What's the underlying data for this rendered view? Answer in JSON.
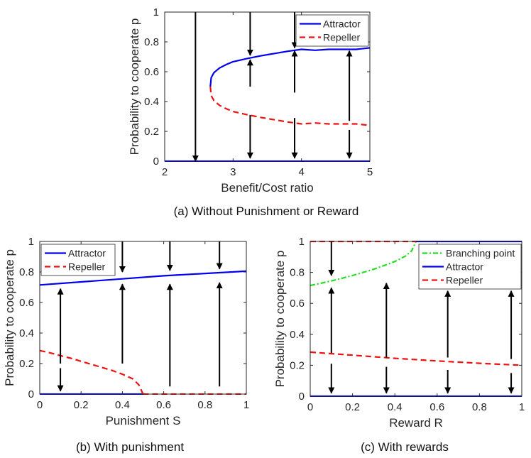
{
  "chart_data": [
    {
      "id": "a",
      "type": "line",
      "caption": "(a) Without Punishment or Reward",
      "xlabel": "Benefit/Cost ratio",
      "ylabel": "Probability to cooperate p",
      "xlim": [
        2,
        5
      ],
      "ylim": [
        0,
        1
      ],
      "xticks": [
        2,
        3,
        4,
        5
      ],
      "xtick_labels": [
        "2",
        "3",
        "4",
        "5"
      ],
      "yticks": [
        0,
        0.2,
        0.4,
        0.6,
        0.8,
        1
      ],
      "ytick_labels": [
        "0",
        "0.2",
        "0.4",
        "0.6",
        "0.8",
        "1"
      ],
      "legend": {
        "position": "top-right",
        "entries": [
          "Attractor",
          "Repeller"
        ]
      },
      "series": [
        {
          "name": "Attractor",
          "style": "solid",
          "color": "#0000ee",
          "x": [
            2.0,
            2.5,
            3.0,
            3.5,
            4.0,
            4.5,
            5.0
          ],
          "y": [
            0,
            0,
            0,
            0,
            0,
            0,
            0
          ]
        },
        {
          "name": "Attractor",
          "style": "solid",
          "color": "#0000ee",
          "x": [
            2.667,
            2.68,
            2.72,
            2.8,
            2.9,
            3.0,
            3.2,
            3.4,
            3.6,
            3.8,
            4.0,
            4.2,
            4.4,
            4.6,
            4.8,
            5.0
          ],
          "y": [
            0.5,
            0.56,
            0.594,
            0.625,
            0.648,
            0.667,
            0.6875,
            0.706,
            0.722,
            0.737,
            0.75,
            0.744,
            0.75,
            0.75,
            0.75,
            0.76
          ]
        },
        {
          "name": "Repeller",
          "style": "dashed",
          "color": "#ee1111",
          "x": [
            2.667,
            2.68,
            2.72,
            2.8,
            2.9,
            3.0,
            3.2,
            3.4,
            3.6,
            3.8,
            4.0,
            4.2,
            4.4,
            4.6,
            4.8,
            5.0
          ],
          "y": [
            0.5,
            0.44,
            0.406,
            0.375,
            0.352,
            0.333,
            0.3125,
            0.294,
            0.278,
            0.263,
            0.25,
            0.256,
            0.25,
            0.25,
            0.25,
            0.24
          ]
        }
      ],
      "arrows": [
        {
          "x": 2.45,
          "from": 1.0,
          "to": 0.0
        },
        {
          "x": 3.25,
          "from": 1.0,
          "to": 0.71
        },
        {
          "x": 3.25,
          "from": 0.5,
          "to": 0.68
        },
        {
          "x": 3.25,
          "from": 0.31,
          "to": 0.02
        },
        {
          "x": 3.9,
          "from": 1.0,
          "to": 0.76
        },
        {
          "x": 3.9,
          "from": 0.46,
          "to": 0.74
        },
        {
          "x": 3.9,
          "from": 0.29,
          "to": 0.02
        },
        {
          "x": 4.7,
          "from": 0.27,
          "to": 0.74
        },
        {
          "x": 4.7,
          "from": 0.21,
          "to": 0.02
        }
      ]
    },
    {
      "id": "b",
      "type": "line",
      "caption": "(b) With punishment",
      "xlabel": "Punishment S",
      "ylabel": "Probability to cooperate p",
      "xlim": [
        0,
        1
      ],
      "ylim": [
        0,
        1
      ],
      "xticks": [
        0,
        0.2,
        0.4,
        0.6,
        0.8,
        1
      ],
      "xtick_labels": [
        "0",
        "0.2",
        "0.4",
        "0.6",
        "0.8",
        "1"
      ],
      "yticks": [
        0,
        0.2,
        0.4,
        0.6,
        0.8,
        1
      ],
      "ytick_labels": [
        "0",
        "0.2",
        "0.4",
        "0.6",
        "0.8",
        "1"
      ],
      "legend": {
        "position": "top-left",
        "entries": [
          "Attractor",
          "Repeller"
        ]
      },
      "series": [
        {
          "name": "Attractor",
          "style": "solid",
          "color": "#0000ee",
          "x": [
            0,
            0.2,
            0.4,
            0.6,
            0.8,
            1.0
          ],
          "y": [
            0.715,
            0.735,
            0.755,
            0.775,
            0.79,
            0.805
          ]
        },
        {
          "name": "Attractor",
          "style": "solid",
          "color": "#0000ee",
          "x": [
            0,
            0.5
          ],
          "y": [
            0,
            0
          ]
        },
        {
          "name": "Repeller",
          "style": "dashed",
          "color": "#ee1111",
          "x": [
            0,
            0.05,
            0.1,
            0.15,
            0.2,
            0.25,
            0.3,
            0.35,
            0.4,
            0.45,
            0.48,
            0.5
          ],
          "y": [
            0.285,
            0.27,
            0.252,
            0.235,
            0.215,
            0.195,
            0.175,
            0.155,
            0.13,
            0.1,
            0.06,
            0.0
          ]
        },
        {
          "name": "Repeller",
          "style": "dashed",
          "color": "#ee1111",
          "x": [
            0.5,
            1.0
          ],
          "y": [
            0,
            0
          ]
        }
      ],
      "arrows": [
        {
          "x": 0.1,
          "from": 0.2,
          "to": 0.69
        },
        {
          "x": 0.1,
          "from": 0.17,
          "to": 0.02
        },
        {
          "x": 0.4,
          "from": 1.0,
          "to": 0.8
        },
        {
          "x": 0.4,
          "from": 0.2,
          "to": 0.72
        },
        {
          "x": 0.63,
          "from": 1.0,
          "to": 0.81
        },
        {
          "x": 0.63,
          "from": 0.05,
          "to": 0.72
        },
        {
          "x": 0.87,
          "from": 1.0,
          "to": 0.82
        },
        {
          "x": 0.87,
          "from": 0.05,
          "to": 0.73
        }
      ]
    },
    {
      "id": "c",
      "type": "line",
      "caption": "(c) With rewards",
      "xlabel": "Reward R",
      "ylabel": "Probability to cooperate p",
      "xlim": [
        0,
        1
      ],
      "ylim": [
        0,
        1
      ],
      "xticks": [
        0,
        0.2,
        0.4,
        0.6,
        0.8,
        1
      ],
      "xtick_labels": [
        "0",
        "0.2",
        "0.4",
        "0.6",
        "0.8",
        "1"
      ],
      "yticks": [
        0,
        0.2,
        0.4,
        0.6,
        0.8,
        1
      ],
      "ytick_labels": [
        "0",
        "0.2",
        "0.4",
        "0.6",
        "0.8",
        "1"
      ],
      "legend": {
        "position": "top-right",
        "entries": [
          "Branching point",
          "Attractor",
          "Repeller"
        ]
      },
      "series": [
        {
          "name": "Branching point",
          "style": "dashdot",
          "color": "#22dd22",
          "x": [
            0,
            0.05,
            0.1,
            0.15,
            0.2,
            0.25,
            0.3,
            0.35,
            0.4,
            0.45,
            0.48,
            0.5
          ],
          "y": [
            0.715,
            0.73,
            0.745,
            0.762,
            0.78,
            0.8,
            0.82,
            0.845,
            0.87,
            0.905,
            0.94,
            1.0
          ]
        },
        {
          "name": "Attractor",
          "style": "solid",
          "color": "#0000ee",
          "x": [
            0.5,
            1.0
          ],
          "y": [
            1,
            1
          ]
        },
        {
          "name": "Attractor",
          "style": "solid",
          "color": "#0000ee",
          "x": [
            0,
            1.0
          ],
          "y": [
            0,
            0
          ]
        },
        {
          "name": "Repeller",
          "style": "dashed",
          "color": "#ee1111",
          "x": [
            0,
            0.5
          ],
          "y": [
            1,
            1
          ]
        },
        {
          "name": "Repeller",
          "style": "dashed",
          "color": "#ee1111",
          "x": [
            0,
            0.2,
            0.4,
            0.6,
            0.8,
            1.0
          ],
          "y": [
            0.285,
            0.265,
            0.245,
            0.228,
            0.213,
            0.2
          ]
        }
      ],
      "arrows": [
        {
          "x": 0.1,
          "from": 1.0,
          "to": 0.78
        },
        {
          "x": 0.1,
          "from": 0.28,
          "to": 0.7
        },
        {
          "x": 0.1,
          "from": 0.21,
          "to": 0.02
        },
        {
          "x": 0.36,
          "from": 0.25,
          "to": 0.73
        },
        {
          "x": 0.36,
          "from": 0.19,
          "to": 0.02
        },
        {
          "x": 0.65,
          "from": 0.25,
          "to": 0.68
        },
        {
          "x": 0.65,
          "from": 0.17,
          "to": 0.02
        },
        {
          "x": 0.95,
          "from": 0.24,
          "to": 0.68
        },
        {
          "x": 0.95,
          "from": 0.15,
          "to": 0.02
        }
      ]
    }
  ]
}
